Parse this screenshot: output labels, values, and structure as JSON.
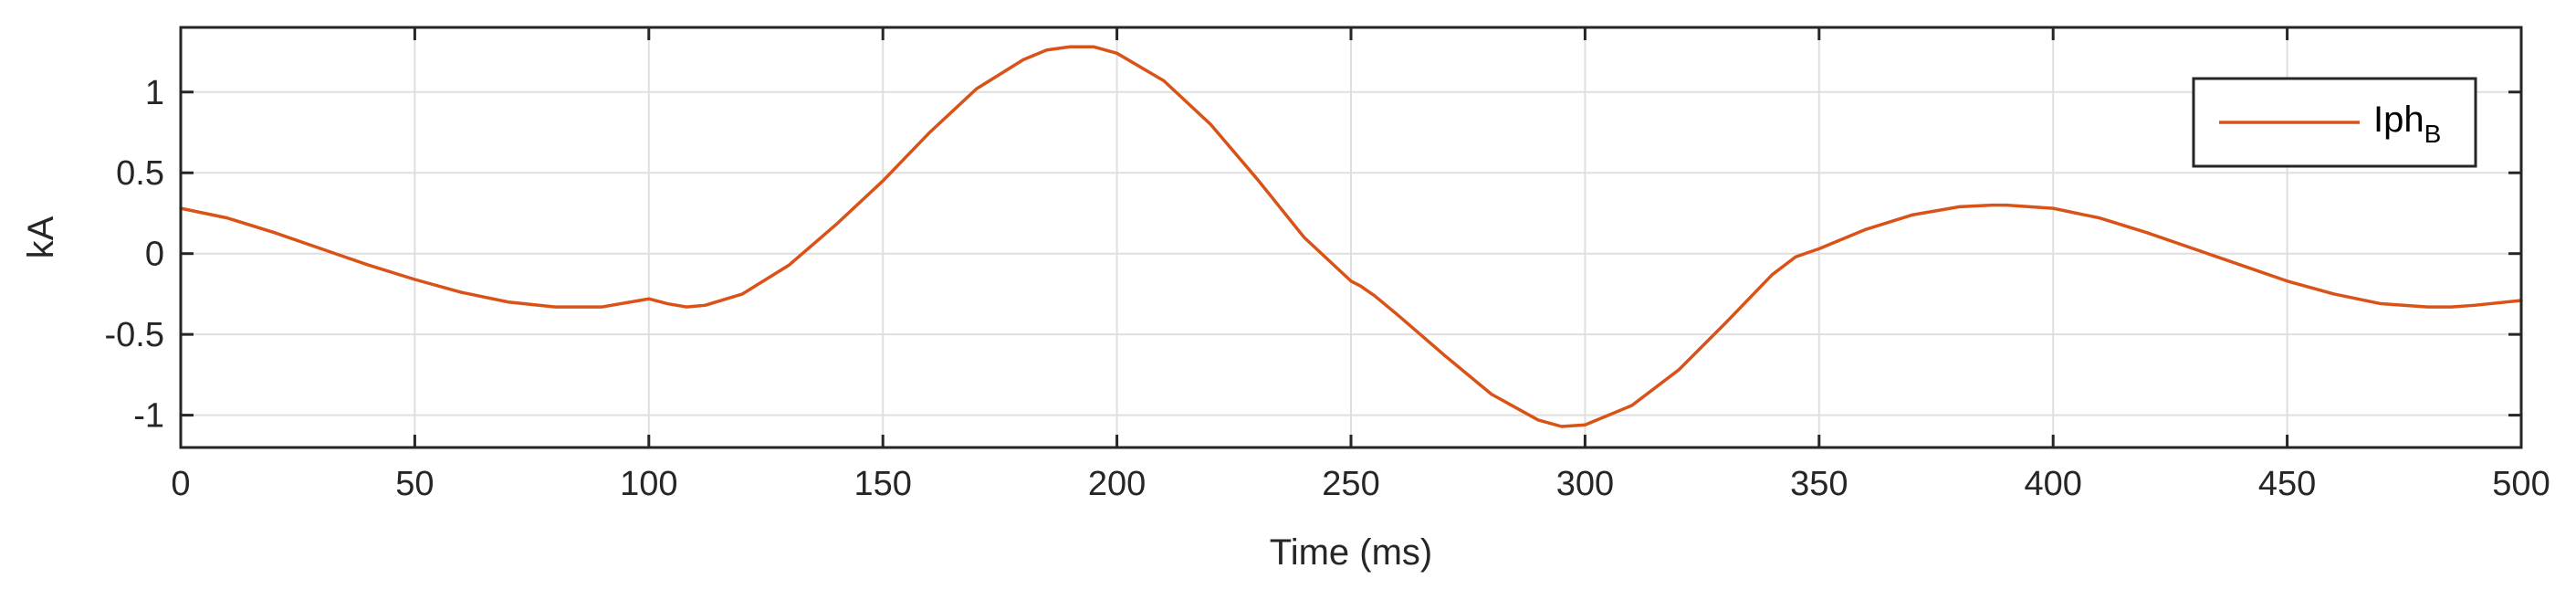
{
  "chart_data": {
    "type": "line",
    "xlabel": "Time (ms)",
    "ylabel": "kA",
    "xlim": [
      0,
      500
    ],
    "ylim": [
      -1.2,
      1.4
    ],
    "xticks": [
      0,
      50,
      100,
      150,
      200,
      250,
      300,
      350,
      400,
      450,
      500
    ],
    "yticks": [
      -1,
      -0.5,
      0,
      0.5,
      1
    ],
    "xtick_labels": [
      "0",
      "50",
      "100",
      "150",
      "200",
      "250",
      "300",
      "350",
      "400",
      "450",
      "500"
    ],
    "ytick_labels": [
      "-1",
      "-0.5",
      "0",
      "0.5",
      "1"
    ],
    "grid": true,
    "legend_position": "top-right",
    "series": [
      {
        "name": "Iph",
        "name_subscript": "B",
        "color": "#D95319",
        "x": [
          0,
          10,
          20,
          30,
          40,
          50,
          60,
          70,
          80,
          90,
          100,
          104,
          108,
          112,
          120,
          130,
          140,
          150,
          160,
          170,
          180,
          185,
          190,
          195,
          200,
          210,
          220,
          230,
          240,
          250,
          252,
          255,
          260,
          270,
          280,
          290,
          295,
          300,
          310,
          320,
          330,
          340,
          345,
          350,
          360,
          370,
          380,
          387,
          390,
          400,
          410,
          420,
          430,
          440,
          450,
          460,
          470,
          480,
          485,
          490,
          500
        ],
        "y": [
          0.28,
          0.22,
          0.13,
          0.03,
          -0.07,
          -0.16,
          -0.24,
          -0.3,
          -0.33,
          -0.33,
          -0.28,
          -0.31,
          -0.33,
          -0.32,
          -0.25,
          -0.07,
          0.18,
          0.45,
          0.75,
          1.02,
          1.2,
          1.26,
          1.28,
          1.28,
          1.24,
          1.07,
          0.8,
          0.46,
          0.1,
          -0.17,
          -0.2,
          -0.26,
          -0.38,
          -0.63,
          -0.87,
          -1.03,
          -1.07,
          -1.06,
          -0.94,
          -0.72,
          -0.43,
          -0.13,
          -0.02,
          0.03,
          0.15,
          0.24,
          0.29,
          0.3,
          0.3,
          0.28,
          0.22,
          0.13,
          0.03,
          -0.07,
          -0.17,
          -0.25,
          -0.31,
          -0.33,
          -0.33,
          -0.32,
          -0.29
        ]
      }
    ]
  }
}
